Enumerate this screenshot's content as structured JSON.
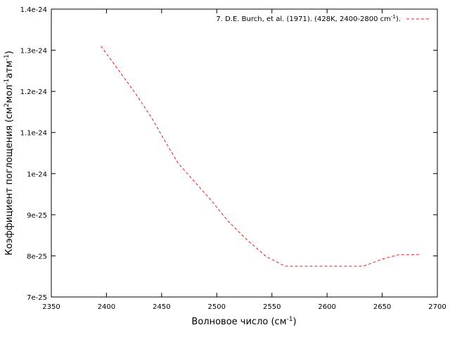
{
  "chart_data": {
    "type": "line",
    "title": "",
    "xlabel": "Волновое число (см",
    "xlabel_sup": "-1",
    "xlabel_end": ")",
    "ylabel": {
      "p1": "Коэффициент поглощения (см",
      "s1": "2",
      "p2": "мол",
      "s2": "-1",
      "p3": "атм",
      "s3": "-1",
      "p4": ")"
    },
    "xlim": [
      2350,
      2700
    ],
    "ylim": [
      7e-25,
      1.4e-24
    ],
    "x_ticks": [
      2350,
      2400,
      2450,
      2500,
      2550,
      2600,
      2650,
      2700
    ],
    "x_tick_labels": [
      "2350",
      "2400",
      "2450",
      "2500",
      "2550",
      "2600",
      "2650",
      "2700"
    ],
    "y_ticks": [
      7e-25,
      8e-25,
      9e-25,
      1e-24,
      1.1e-24,
      1.2e-24,
      1.3e-24,
      1.4e-24
    ],
    "y_tick_labels": [
      "7e-25",
      "8e-25",
      "9e-25",
      "1e-24",
      "1.1e-24",
      "1.2e-24",
      "1.3e-24",
      "1.4e-24"
    ],
    "grid": false,
    "legend_position": "top-right",
    "series": [
      {
        "name": "7. D.E. Burch, et al. (1971). (428K, 2400-2800 cm",
        "name_sup": "-1",
        "name_end": ").",
        "color": "#e41a1c",
        "style": "dashed",
        "x": [
          2395,
          2410,
          2425,
          2440,
          2455,
          2465,
          2480,
          2495,
          2510,
          2527,
          2545,
          2562,
          2580,
          2600,
          2617,
          2633,
          2650,
          2665,
          2685
        ],
        "y": [
          1.31e-24,
          1.255e-24,
          1.2e-24,
          1.14e-24,
          1.07e-24,
          1.025e-24,
          9.8e-25,
          9.35e-25,
          8.85e-25,
          8.4e-25,
          7.98e-25,
          7.75e-25,
          7.75e-25,
          7.75e-25,
          7.75e-25,
          7.75e-25,
          7.92e-25,
          8.03e-25,
          8.03e-25
        ]
      }
    ]
  }
}
